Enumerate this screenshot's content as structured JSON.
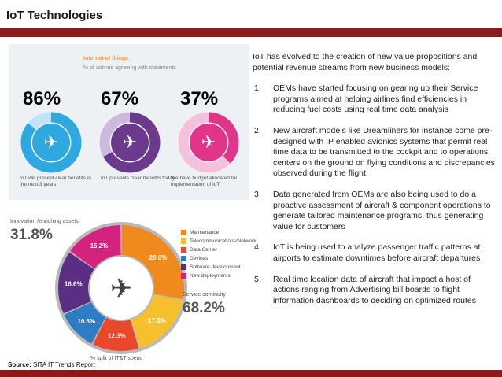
{
  "header": {
    "title": "IoT Technologies"
  },
  "infographic_top": {
    "title": "Internet of things",
    "subtitle": "% of airlines agreeing with statements",
    "stats": [
      {
        "value": "86%",
        "caption": "IoT will present clear benefits in the next 3 years",
        "color": "#2fa8e0",
        "fraction": 0.86
      },
      {
        "value": "67%",
        "caption": "IoT presents clear benefits today",
        "color": "#6b3a8c",
        "fraction": 0.67
      },
      {
        "value": "37%",
        "caption": "We have budget allocated for implementation of IoT",
        "color": "#e0358a",
        "fraction": 0.37
      }
    ]
  },
  "infographic_bottom": {
    "innovation_label": "Innovation /enriching assets",
    "innovation_value": "31.8%",
    "service_label": "Service continuity",
    "service_value": "68.2%",
    "split_label": "% split of IT&T spend",
    "legend": [
      {
        "label": "Maintenance",
        "color": "#f08a1c"
      },
      {
        "label": "Telecommunications/Network",
        "color": "#f6c02c"
      },
      {
        "label": "Data Center",
        "color": "#e8492a"
      },
      {
        "label": "Devices",
        "color": "#2e7cc4"
      },
      {
        "label": "Software development",
        "color": "#5b2d83"
      },
      {
        "label": "New deployments",
        "color": "#d4237f"
      }
    ],
    "segments": [
      {
        "label": "28.0%",
        "value": 28.0,
        "color": "#f08a1c"
      },
      {
        "label": "17.3%",
        "value": 17.3,
        "color": "#f6c02c"
      },
      {
        "label": "12.3%",
        "value": 12.3,
        "color": "#e8492a"
      },
      {
        "label": "10.6%",
        "value": 10.6,
        "color": "#2e7cc4"
      },
      {
        "label": "16.6%",
        "value": 16.6,
        "color": "#5b2d83"
      },
      {
        "label": "15.2%",
        "value": 15.2,
        "color": "#d4237f"
      }
    ]
  },
  "body": {
    "intro": "IoT has evolved to the creation of new value propositions and potential revenue streams from new business models:",
    "points": [
      {
        "num": "1.",
        "text": "OEMs have started focusing on gearing up their Service programs aimed at helping airlines find efficiencies in reducing fuel costs using real time data analysis"
      },
      {
        "num": "2.",
        "text": "New aircraft models like Dreamliners for instance come pre-designed with IP enabled avionics systems that permit real time data to be transmitted to the cockpit and to operations centers on the ground on flying conditions and discrepancies observed during the flight"
      },
      {
        "num": "3.",
        "text": "Data generated from OEMs are also being used to do a proactive assessment of aircraft & component operations to generate tailored maintenance programs, thus generating value for customers"
      },
      {
        "num": "4.",
        "text": "IoT is being used to analyze passenger traffic patterns at airports to estimate downtimes before aircraft departures"
      },
      {
        "num": "5.",
        "text": "Real time location data of aircraft that impact a host of actions ranging from Advertising bill boards to flight information dashboards to deciding on optimized routes"
      }
    ]
  },
  "footer": {
    "source_label": "Source:",
    "source_text": " SITA IT Trends Report"
  }
}
